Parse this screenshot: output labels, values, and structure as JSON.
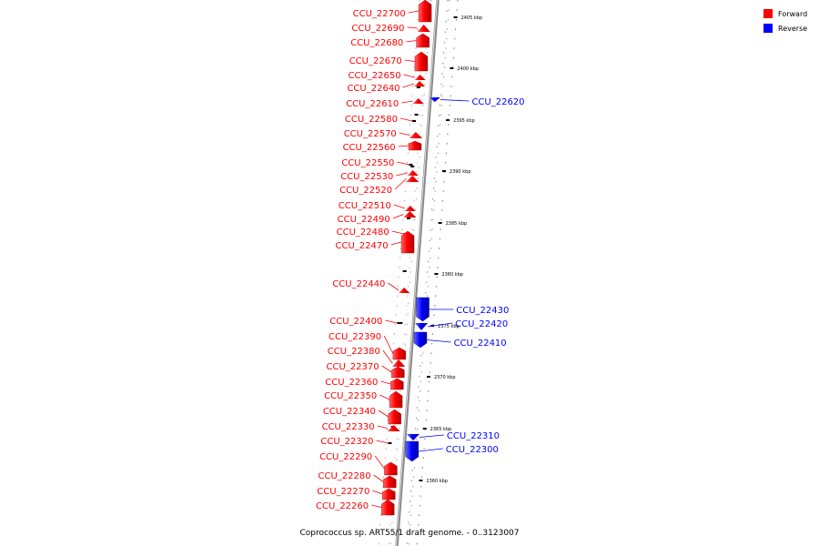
{
  "title": "Coprococcus sp. ART55/1 draft genome. - 0..3123007",
  "legend": [
    {
      "label": "Forward",
      "color": "#ff0000"
    },
    {
      "label": "Reverse",
      "color": "#0000ff"
    }
  ],
  "colors": {
    "forward": "#ff0000",
    "reverse": "#0000ff",
    "backbone": "#999999"
  },
  "ticks": [
    "2405 kbp",
    "2400 kbp",
    "2395 kbp",
    "2390 kbp",
    "2385 kbp",
    "2380 kbp",
    "2375 kbp",
    "2370 kbp",
    "2365 kbp",
    "2360 kbp"
  ],
  "genes": [
    {
      "name": "CCU_22700",
      "strand": "forward"
    },
    {
      "name": "CCU_22690",
      "strand": "forward"
    },
    {
      "name": "CCU_22680",
      "strand": "forward"
    },
    {
      "name": "CCU_22670",
      "strand": "forward"
    },
    {
      "name": "CCU_22650",
      "strand": "forward"
    },
    {
      "name": "CCU_22640",
      "strand": "forward"
    },
    {
      "name": "CCU_22620",
      "strand": "reverse"
    },
    {
      "name": "CCU_22610",
      "strand": "forward"
    },
    {
      "name": "CCU_22580",
      "strand": "forward"
    },
    {
      "name": "CCU_22570",
      "strand": "forward"
    },
    {
      "name": "CCU_22560",
      "strand": "forward"
    },
    {
      "name": "CCU_22550",
      "strand": "forward"
    },
    {
      "name": "CCU_22530",
      "strand": "forward"
    },
    {
      "name": "CCU_22520",
      "strand": "forward"
    },
    {
      "name": "CCU_22510",
      "strand": "forward"
    },
    {
      "name": "CCU_22490",
      "strand": "forward"
    },
    {
      "name": "CCU_22480",
      "strand": "forward"
    },
    {
      "name": "CCU_22470",
      "strand": "forward"
    },
    {
      "name": "CCU_22440",
      "strand": "forward"
    },
    {
      "name": "CCU_22430",
      "strand": "reverse"
    },
    {
      "name": "CCU_22420",
      "strand": "reverse"
    },
    {
      "name": "CCU_22410",
      "strand": "reverse"
    },
    {
      "name": "CCU_22400",
      "strand": "forward"
    },
    {
      "name": "CCU_22390",
      "strand": "forward"
    },
    {
      "name": "CCU_22380",
      "strand": "forward"
    },
    {
      "name": "CCU_22370",
      "strand": "forward"
    },
    {
      "name": "CCU_22360",
      "strand": "forward"
    },
    {
      "name": "CCU_22350",
      "strand": "forward"
    },
    {
      "name": "CCU_22340",
      "strand": "forward"
    },
    {
      "name": "CCU_22330",
      "strand": "forward"
    },
    {
      "name": "CCU_22320",
      "strand": "forward"
    },
    {
      "name": "CCU_22310",
      "strand": "reverse"
    },
    {
      "name": "CCU_22300",
      "strand": "reverse"
    },
    {
      "name": "CCU_22290",
      "strand": "forward"
    },
    {
      "name": "CCU_22280",
      "strand": "forward"
    },
    {
      "name": "CCU_22270",
      "strand": "forward"
    },
    {
      "name": "CCU_22260",
      "strand": "forward"
    }
  ]
}
